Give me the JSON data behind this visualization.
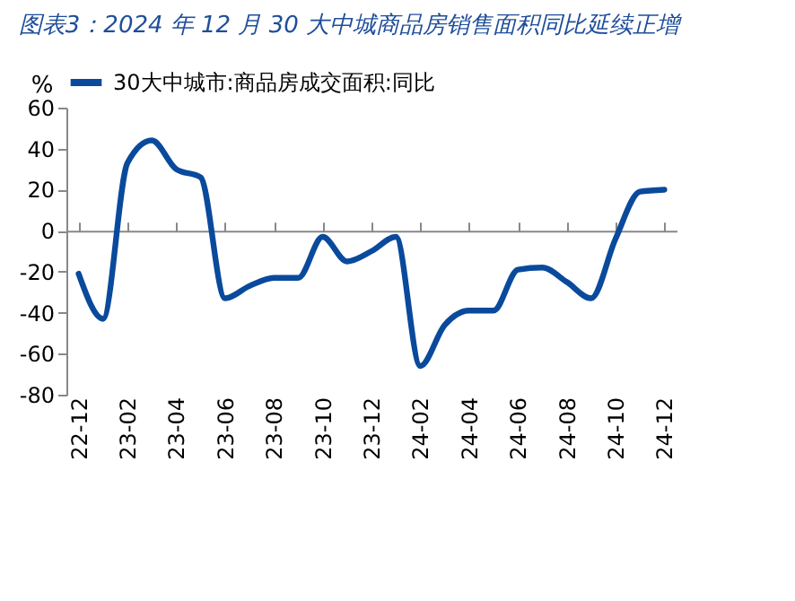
{
  "chart_data": {
    "type": "line",
    "title": "图表3：2024 年 12 月 30 大中城商品房销售面积同比延续正增",
    "ylabel": "%",
    "categories": [
      "22-12",
      null,
      "23-02",
      null,
      "23-04",
      null,
      "23-06",
      null,
      "23-08",
      null,
      "23-10",
      null,
      "23-12",
      null,
      "24-02",
      null,
      "24-04",
      null,
      "24-06",
      null,
      "24-08",
      null,
      "24-10",
      null,
      "24-12"
    ],
    "series": [
      {
        "name": "30大中城市:商品房成交面积:同比",
        "color": "#0a4a9c",
        "values": [
          -21,
          -43,
          33,
          44,
          30,
          26,
          -33,
          -27,
          -23,
          -23,
          -3,
          -15,
          -10,
          -3,
          -66,
          -46,
          -39,
          -39,
          -19,
          -18,
          -25,
          -33,
          -4,
          19,
          20
        ]
      }
    ],
    "ylim": [
      -80,
      60
    ],
    "yticks": [
      -80,
      -60,
      -40,
      -20,
      0,
      20,
      40,
      60
    ],
    "legend": "top"
  }
}
